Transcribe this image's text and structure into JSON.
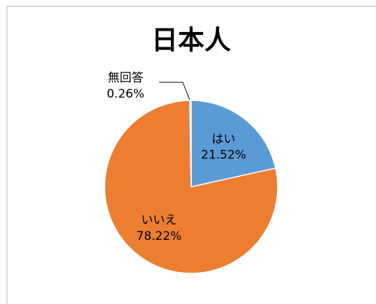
{
  "chart_data": {
    "type": "pie",
    "title": "日本人",
    "categories": [
      "はい",
      "いいえ",
      "無回答"
    ],
    "values": [
      21.52,
      78.22,
      0.26
    ],
    "value_labels": [
      "21.52%",
      "78.22%",
      "0.26%"
    ],
    "colors": [
      "#5b9bd5",
      "#ed7d31",
      "#a5a5a5"
    ]
  }
}
